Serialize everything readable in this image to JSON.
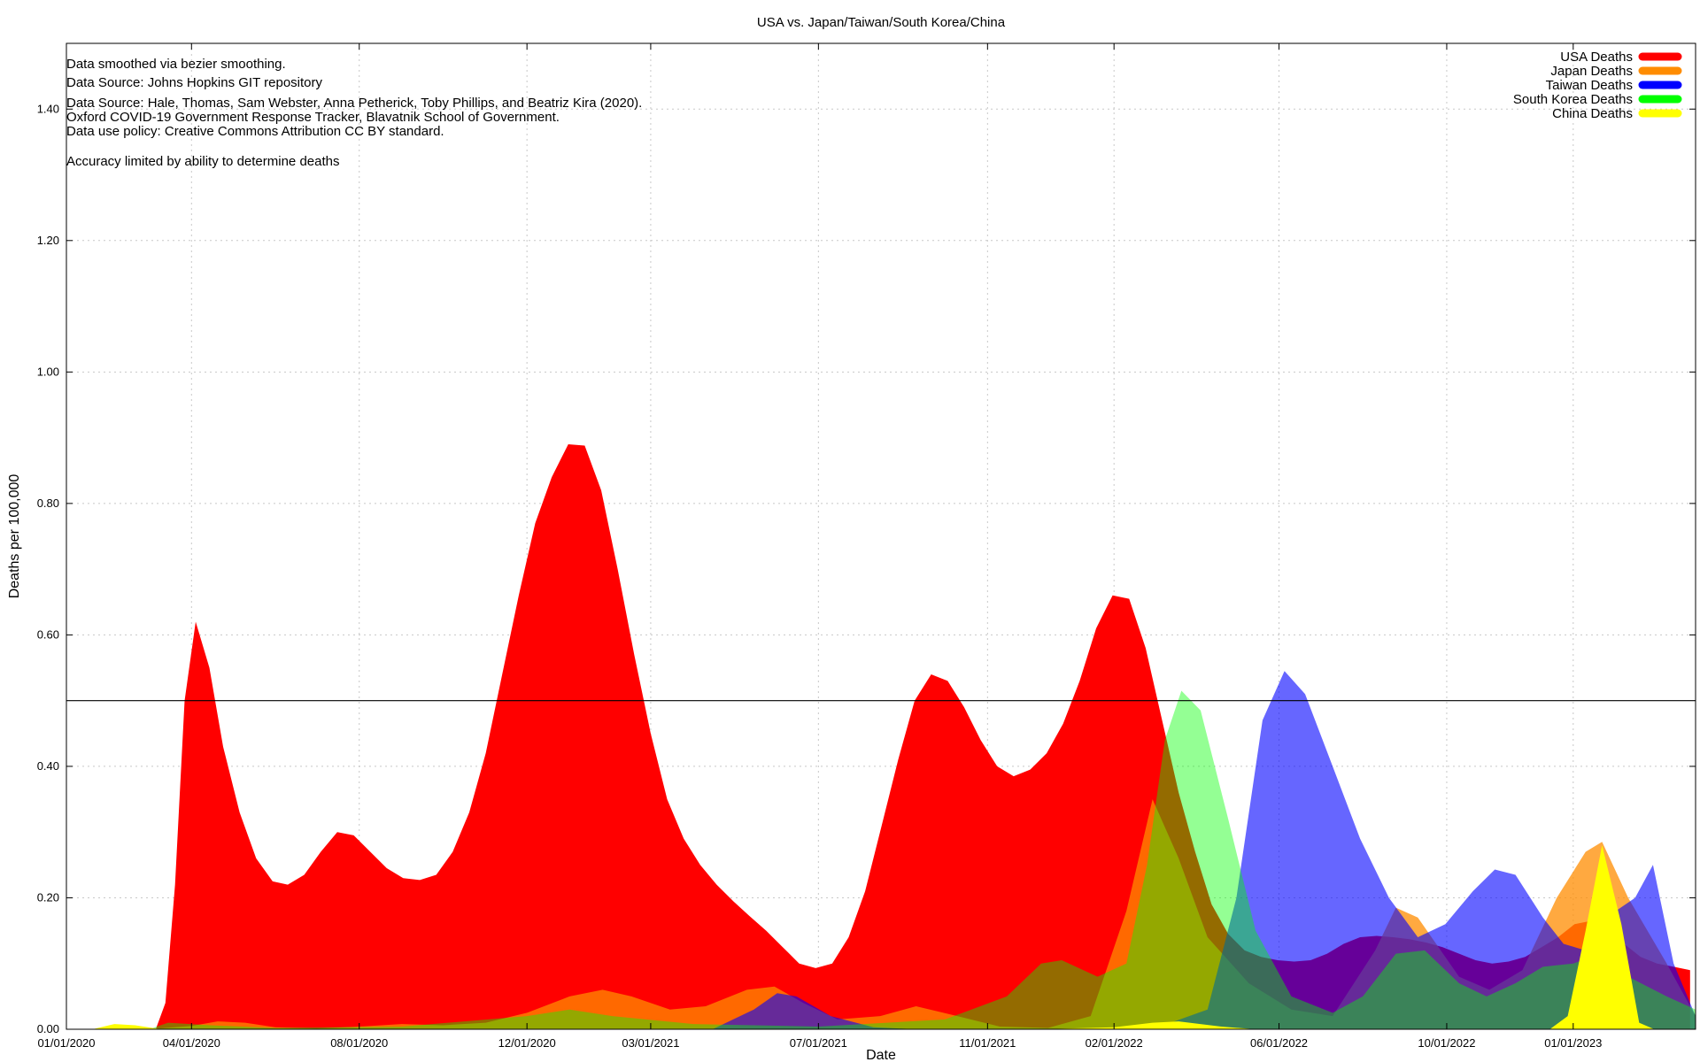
{
  "chart_data": {
    "type": "area",
    "title": "USA vs. Japan/Taiwan/South Korea/China",
    "xlabel": "Date",
    "ylabel": "Deaths per 100,000",
    "x_range": [
      "2020-01-01",
      "2023-03-31"
    ],
    "ylim": [
      0,
      1.5
    ],
    "grid": true,
    "legend_position": "top-right",
    "x_ticks": [
      {
        "date": "2020-01-01",
        "label": "01/01/2020"
      },
      {
        "date": "2020-04-01",
        "label": "04/01/2020"
      },
      {
        "date": "2020-08-01",
        "label": "08/01/2020"
      },
      {
        "date": "2020-12-01",
        "label": "12/01/2020"
      },
      {
        "date": "2021-03-01",
        "label": "03/01/2021"
      },
      {
        "date": "2021-07-01",
        "label": "07/01/2021"
      },
      {
        "date": "2021-11-01",
        "label": "11/01/2021"
      },
      {
        "date": "2022-02-01",
        "label": "02/01/2022"
      },
      {
        "date": "2022-06-01",
        "label": "06/01/2022"
      },
      {
        "date": "2022-10-01",
        "label": "10/01/2022"
      },
      {
        "date": "2023-01-01",
        "label": "01/01/2023"
      }
    ],
    "y_ticks": [
      {
        "value": 0.0,
        "label": "0.00"
      },
      {
        "value": 0.2,
        "label": "0.20"
      },
      {
        "value": 0.4,
        "label": "0.40"
      },
      {
        "value": 0.6,
        "label": "0.60"
      },
      {
        "value": 0.8,
        "label": "0.80"
      },
      {
        "value": 1.0,
        "label": "1.00"
      },
      {
        "value": 1.2,
        "label": "1.20"
      },
      {
        "value": 1.4,
        "label": "1.40"
      }
    ],
    "reference_line": {
      "value": 0.5
    },
    "annotations": [
      "Data smoothed via bezier smoothing.",
      "Data Source: Johns Hopkins GIT repository",
      "Data Source: Hale, Thomas, Sam Webster, Anna Petherick, Toby Phillips, and Beatriz Kira (2020).",
      "Oxford COVID-19 Government Response Tracker, Blavatnik School of Government.",
      "Data use policy: Creative Commons Attribution CC BY standard.",
      "",
      "Accuracy limited by ability to determine deaths"
    ],
    "series": [
      {
        "name": "USA Deaths",
        "color": "#ff0000",
        "opacity": 1.0,
        "points": [
          [
            "2020-03-06",
            0.0
          ],
          [
            "2020-03-13",
            0.04
          ],
          [
            "2020-03-20",
            0.22
          ],
          [
            "2020-03-27",
            0.5
          ],
          [
            "2020-04-04",
            0.62
          ],
          [
            "2020-04-14",
            0.55
          ],
          [
            "2020-04-24",
            0.43
          ],
          [
            "2020-05-06",
            0.33
          ],
          [
            "2020-05-18",
            0.26
          ],
          [
            "2020-05-30",
            0.225
          ],
          [
            "2020-06-10",
            0.22
          ],
          [
            "2020-06-22",
            0.235
          ],
          [
            "2020-07-04",
            0.27
          ],
          [
            "2020-07-16",
            0.3
          ],
          [
            "2020-07-28",
            0.295
          ],
          [
            "2020-08-09",
            0.27
          ],
          [
            "2020-08-21",
            0.245
          ],
          [
            "2020-09-02",
            0.23
          ],
          [
            "2020-09-14",
            0.227
          ],
          [
            "2020-09-26",
            0.235
          ],
          [
            "2020-10-08",
            0.27
          ],
          [
            "2020-10-20",
            0.33
          ],
          [
            "2020-11-01",
            0.42
          ],
          [
            "2020-11-13",
            0.54
          ],
          [
            "2020-11-25",
            0.66
          ],
          [
            "2020-12-07",
            0.77
          ],
          [
            "2020-12-19",
            0.84
          ],
          [
            "2020-12-31",
            0.89
          ],
          [
            "2021-01-12",
            0.888
          ],
          [
            "2021-01-24",
            0.82
          ],
          [
            "2021-02-05",
            0.7
          ],
          [
            "2021-02-17",
            0.57
          ],
          [
            "2021-03-01",
            0.45
          ],
          [
            "2021-03-13",
            0.35
          ],
          [
            "2021-03-25",
            0.29
          ],
          [
            "2021-04-06",
            0.25
          ],
          [
            "2021-04-18",
            0.22
          ],
          [
            "2021-04-30",
            0.195
          ],
          [
            "2021-05-12",
            0.172
          ],
          [
            "2021-05-24",
            0.15
          ],
          [
            "2021-06-05",
            0.125
          ],
          [
            "2021-06-17",
            0.1
          ],
          [
            "2021-06-29",
            0.093
          ],
          [
            "2021-07-11",
            0.1
          ],
          [
            "2021-07-23",
            0.14
          ],
          [
            "2021-08-04",
            0.21
          ],
          [
            "2021-08-16",
            0.31
          ],
          [
            "2021-08-28",
            0.41
          ],
          [
            "2021-09-09",
            0.5
          ],
          [
            "2021-09-21",
            0.54
          ],
          [
            "2021-10-03",
            0.53
          ],
          [
            "2021-10-15",
            0.49
          ],
          [
            "2021-10-27",
            0.44
          ],
          [
            "2021-11-08",
            0.4
          ],
          [
            "2021-11-20",
            0.385
          ],
          [
            "2021-12-02",
            0.395
          ],
          [
            "2021-12-14",
            0.42
          ],
          [
            "2021-12-26",
            0.465
          ],
          [
            "2022-01-07",
            0.53
          ],
          [
            "2022-01-19",
            0.61
          ],
          [
            "2022-01-31",
            0.66
          ],
          [
            "2022-02-12",
            0.655
          ],
          [
            "2022-02-24",
            0.58
          ],
          [
            "2022-03-08",
            0.47
          ],
          [
            "2022-03-20",
            0.36
          ],
          [
            "2022-04-01",
            0.27
          ],
          [
            "2022-04-13",
            0.19
          ],
          [
            "2022-04-25",
            0.145
          ],
          [
            "2022-05-07",
            0.12
          ],
          [
            "2022-05-19",
            0.11
          ],
          [
            "2022-05-31",
            0.105
          ],
          [
            "2022-06-12",
            0.103
          ],
          [
            "2022-06-24",
            0.105
          ],
          [
            "2022-07-06",
            0.115
          ],
          [
            "2022-07-18",
            0.13
          ],
          [
            "2022-07-30",
            0.14
          ],
          [
            "2022-08-11",
            0.142
          ],
          [
            "2022-08-23",
            0.14
          ],
          [
            "2022-09-04",
            0.137
          ],
          [
            "2022-09-16",
            0.132
          ],
          [
            "2022-09-28",
            0.125
          ],
          [
            "2022-10-10",
            0.115
          ],
          [
            "2022-10-22",
            0.105
          ],
          [
            "2022-11-03",
            0.1
          ],
          [
            "2022-11-15",
            0.103
          ],
          [
            "2022-11-27",
            0.11
          ],
          [
            "2022-12-09",
            0.125
          ],
          [
            "2022-12-21",
            0.14
          ],
          [
            "2023-01-02",
            0.16
          ],
          [
            "2023-01-14",
            0.165
          ],
          [
            "2023-01-26",
            0.15
          ],
          [
            "2023-02-07",
            0.13
          ],
          [
            "2023-02-19",
            0.11
          ],
          [
            "2023-03-03",
            0.1
          ],
          [
            "2023-03-15",
            0.095
          ],
          [
            "2023-03-27",
            0.09
          ]
        ]
      },
      {
        "name": "Japan Deaths",
        "color": "#ff8c00",
        "opacity": 0.75,
        "points": [
          [
            "2020-03-01",
            0.0
          ],
          [
            "2020-04-01",
            0.005
          ],
          [
            "2020-04-20",
            0.012
          ],
          [
            "2020-05-10",
            0.01
          ],
          [
            "2020-06-01",
            0.003
          ],
          [
            "2020-07-01",
            0.001
          ],
          [
            "2020-08-01",
            0.004
          ],
          [
            "2020-09-01",
            0.008
          ],
          [
            "2020-10-01",
            0.006
          ],
          [
            "2020-11-01",
            0.01
          ],
          [
            "2020-12-01",
            0.025
          ],
          [
            "2021-01-01",
            0.05
          ],
          [
            "2021-01-25",
            0.06
          ],
          [
            "2021-02-15",
            0.05
          ],
          [
            "2021-03-15",
            0.03
          ],
          [
            "2021-04-10",
            0.035
          ],
          [
            "2021-05-10",
            0.06
          ],
          [
            "2021-05-30",
            0.065
          ],
          [
            "2021-06-20",
            0.04
          ],
          [
            "2021-07-15",
            0.015
          ],
          [
            "2021-08-15",
            0.02
          ],
          [
            "2021-09-10",
            0.035
          ],
          [
            "2021-10-10",
            0.02
          ],
          [
            "2021-11-10",
            0.004
          ],
          [
            "2021-12-15",
            0.002
          ],
          [
            "2022-01-15",
            0.02
          ],
          [
            "2022-02-10",
            0.18
          ],
          [
            "2022-03-01",
            0.35
          ],
          [
            "2022-03-20",
            0.26
          ],
          [
            "2022-04-10",
            0.14
          ],
          [
            "2022-05-10",
            0.07
          ],
          [
            "2022-06-10",
            0.03
          ],
          [
            "2022-07-10",
            0.02
          ],
          [
            "2022-08-10",
            0.12
          ],
          [
            "2022-08-25",
            0.185
          ],
          [
            "2022-09-10",
            0.17
          ],
          [
            "2022-10-10",
            0.08
          ],
          [
            "2022-11-01",
            0.06
          ],
          [
            "2022-11-25",
            0.09
          ],
          [
            "2022-12-20",
            0.2
          ],
          [
            "2023-01-10",
            0.27
          ],
          [
            "2023-01-22",
            0.285
          ],
          [
            "2023-02-10",
            0.2
          ],
          [
            "2023-03-10",
            0.1
          ],
          [
            "2023-03-31",
            0.02
          ]
        ]
      },
      {
        "name": "Taiwan Deaths",
        "color": "#0000ff",
        "opacity": 0.6,
        "points": [
          [
            "2021-04-15",
            0.0
          ],
          [
            "2021-05-15",
            0.03
          ],
          [
            "2021-06-01",
            0.055
          ],
          [
            "2021-06-15",
            0.05
          ],
          [
            "2021-07-10",
            0.02
          ],
          [
            "2021-08-10",
            0.003
          ],
          [
            "2021-09-10",
            0.0
          ],
          [
            "2022-03-01",
            0.0
          ],
          [
            "2022-04-10",
            0.03
          ],
          [
            "2022-05-01",
            0.2
          ],
          [
            "2022-05-20",
            0.47
          ],
          [
            "2022-06-05",
            0.545
          ],
          [
            "2022-06-20",
            0.51
          ],
          [
            "2022-07-10",
            0.4
          ],
          [
            "2022-07-30",
            0.29
          ],
          [
            "2022-08-20",
            0.2
          ],
          [
            "2022-09-10",
            0.14
          ],
          [
            "2022-09-30",
            0.16
          ],
          [
            "2022-10-20",
            0.21
          ],
          [
            "2022-11-05",
            0.243
          ],
          [
            "2022-11-20",
            0.235
          ],
          [
            "2022-12-10",
            0.17
          ],
          [
            "2022-12-25",
            0.13
          ],
          [
            "2023-01-10",
            0.12
          ],
          [
            "2023-01-25",
            0.17
          ],
          [
            "2023-02-15",
            0.2
          ],
          [
            "2023-02-28",
            0.25
          ],
          [
            "2023-03-15",
            0.1
          ],
          [
            "2023-03-31",
            0.02
          ]
        ]
      },
      {
        "name": "South Korea Deaths",
        "color": "#00ff00",
        "opacity": 0.42,
        "points": [
          [
            "2020-03-01",
            0.0
          ],
          [
            "2020-03-15",
            0.01
          ],
          [
            "2020-04-15",
            0.006
          ],
          [
            "2020-06-01",
            0.002
          ],
          [
            "2020-09-01",
            0.004
          ],
          [
            "2020-12-01",
            0.02
          ],
          [
            "2021-01-01",
            0.03
          ],
          [
            "2021-02-01",
            0.02
          ],
          [
            "2021-04-01",
            0.008
          ],
          [
            "2021-07-01",
            0.004
          ],
          [
            "2021-10-01",
            0.015
          ],
          [
            "2021-11-15",
            0.05
          ],
          [
            "2021-12-10",
            0.1
          ],
          [
            "2021-12-25",
            0.105
          ],
          [
            "2022-01-20",
            0.08
          ],
          [
            "2022-02-10",
            0.1
          ],
          [
            "2022-02-25",
            0.25
          ],
          [
            "2022-03-10",
            0.44
          ],
          [
            "2022-03-22",
            0.515
          ],
          [
            "2022-04-05",
            0.485
          ],
          [
            "2022-04-25",
            0.32
          ],
          [
            "2022-05-15",
            0.15
          ],
          [
            "2022-06-10",
            0.05
          ],
          [
            "2022-07-10",
            0.025
          ],
          [
            "2022-08-01",
            0.05
          ],
          [
            "2022-08-25",
            0.115
          ],
          [
            "2022-09-15",
            0.12
          ],
          [
            "2022-10-10",
            0.07
          ],
          [
            "2022-10-30",
            0.05
          ],
          [
            "2022-11-20",
            0.07
          ],
          [
            "2022-12-10",
            0.095
          ],
          [
            "2023-01-01",
            0.1
          ],
          [
            "2023-01-15",
            0.11
          ],
          [
            "2023-02-10",
            0.08
          ],
          [
            "2023-03-10",
            0.05
          ],
          [
            "2023-03-31",
            0.03
          ]
        ]
      },
      {
        "name": "China Deaths",
        "color": "#ffff00",
        "opacity": 1.0,
        "points": [
          [
            "2020-01-20",
            0.0
          ],
          [
            "2020-02-05",
            0.008
          ],
          [
            "2020-02-20",
            0.006
          ],
          [
            "2020-03-10",
            0.0
          ],
          [
            "2021-12-10",
            0.0
          ],
          [
            "2022-02-01",
            0.003
          ],
          [
            "2022-03-01",
            0.01
          ],
          [
            "2022-03-20",
            0.012
          ],
          [
            "2022-04-20",
            0.004
          ],
          [
            "2022-05-15",
            0.0
          ],
          [
            "2022-12-15",
            0.0
          ],
          [
            "2022-12-28",
            0.02
          ],
          [
            "2023-01-10",
            0.15
          ],
          [
            "2023-01-22",
            0.28
          ],
          [
            "2023-02-05",
            0.16
          ],
          [
            "2023-02-18",
            0.01
          ],
          [
            "2023-03-01",
            0.0
          ]
        ]
      }
    ]
  }
}
